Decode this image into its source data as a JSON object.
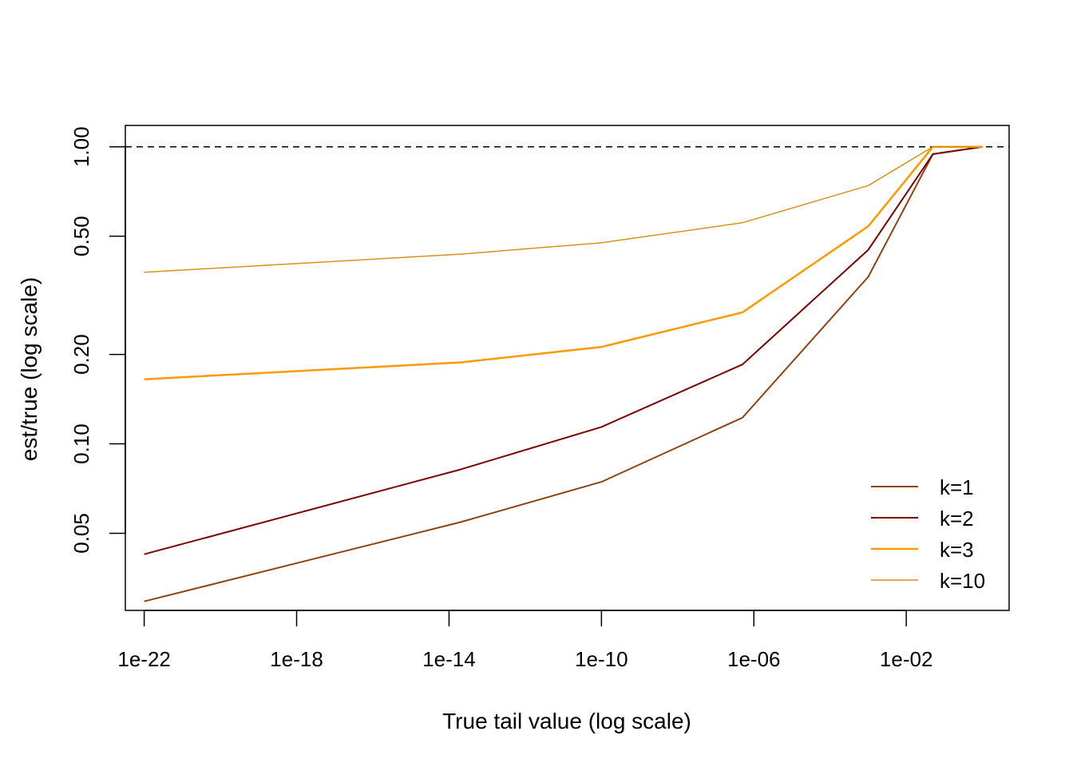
{
  "chart_data": {
    "type": "line",
    "title": "",
    "xlabel": "True tail value (log scale)",
    "ylabel": "est/true (log scale)",
    "x_scale": "log",
    "y_scale": "log",
    "xlim": [
      3.2e-23,
      5
    ],
    "ylim": [
      0.0275,
      1.18
    ],
    "x_ticks": [
      {
        "value": 1e-22,
        "label": "1e-22"
      },
      {
        "value": 1e-18,
        "label": "1e-18"
      },
      {
        "value": 1e-14,
        "label": "1e-14"
      },
      {
        "value": 1e-10,
        "label": "1e-10"
      },
      {
        "value": 1e-06,
        "label": "1e-06"
      },
      {
        "value": 0.01,
        "label": "1e-02"
      }
    ],
    "y_ticks": [
      {
        "value": 0.05,
        "label": "0.05"
      },
      {
        "value": 0.1,
        "label": "0.10"
      },
      {
        "value": 0.2,
        "label": "0.20"
      },
      {
        "value": 0.5,
        "label": "0.50"
      },
      {
        "value": 1.0,
        "label": "1.00"
      }
    ],
    "reference_line": {
      "y": 1.0,
      "style": "dashed",
      "color": "#000000"
    },
    "x": [
      1e-22,
      2e-14,
      1e-10,
      5e-07,
      0.001,
      0.05,
      1.0
    ],
    "series": [
      {
        "name": "k=1",
        "color": "#8B4513",
        "width": 2,
        "values": [
          0.0295,
          0.0545,
          0.0745,
          0.1225,
          0.365,
          0.945,
          1.0
        ]
      },
      {
        "name": "k=2",
        "color": "#7B0000",
        "width": 2,
        "values": [
          0.0425,
          0.082,
          0.114,
          0.185,
          0.45,
          0.945,
          1.0
        ]
      },
      {
        "name": "k=3",
        "color": "#FF9900",
        "width": 2.5,
        "values": [
          0.165,
          0.188,
          0.212,
          0.277,
          0.54,
          1.0,
          1.0
        ]
      },
      {
        "name": "k=10",
        "color": "#D4941B",
        "width": 1.5,
        "values": [
          0.378,
          0.435,
          0.475,
          0.555,
          0.74,
          1.0,
          1.0
        ]
      }
    ],
    "legend": {
      "position": "bottom-right",
      "frame": false
    },
    "grid": false
  }
}
